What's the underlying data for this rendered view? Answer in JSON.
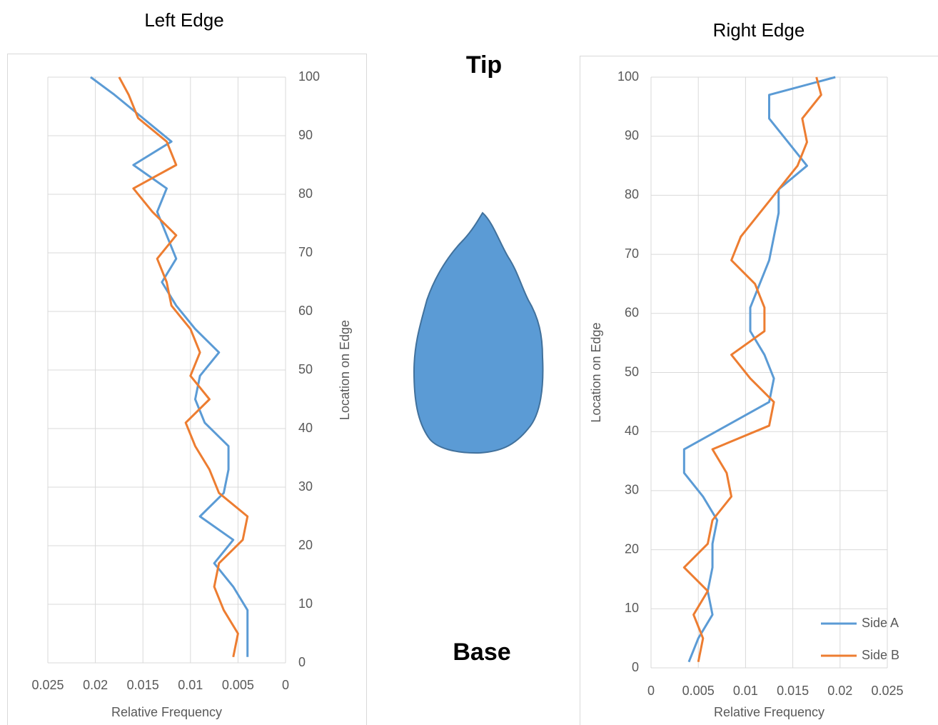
{
  "chart_data": [
    {
      "type": "line",
      "title": "Left Edge",
      "xlabel": "Relative Frequency",
      "ylabel": "Location on Edge",
      "y": [
        1,
        5,
        9,
        13,
        17,
        21,
        25,
        29,
        33,
        37,
        41,
        45,
        49,
        53,
        57,
        61,
        65,
        69,
        73,
        77,
        81,
        85,
        89,
        93,
        97,
        100
      ],
      "series": [
        {
          "color": "#5b9bd5",
          "values": [
            0.004,
            0.004,
            0.004,
            0.0055,
            0.0075,
            0.0055,
            0.009,
            0.0065,
            0.006,
            0.006,
            0.0085,
            0.0095,
            0.009,
            0.007,
            0.0095,
            0.0115,
            0.013,
            0.0115,
            0.0125,
            0.0135,
            0.0125,
            0.016,
            0.012,
            0.015,
            0.018,
            0.0205
          ]
        },
        {
          "color": "#ed7d31",
          "values": [
            0.0055,
            0.005,
            0.0065,
            0.0075,
            0.007,
            0.0045,
            0.004,
            0.007,
            0.008,
            0.0095,
            0.0105,
            0.008,
            0.01,
            0.009,
            0.01,
            0.012,
            0.0125,
            0.0135,
            0.0115,
            0.014,
            0.016,
            0.0115,
            0.0125,
            0.0155,
            0.0165,
            0.0175
          ]
        }
      ],
      "xlim": [
        0.025,
        0
      ],
      "xticks": [
        0.025,
        0.02,
        0.015,
        0.01,
        0.005,
        0
      ],
      "ylim": [
        0,
        100
      ],
      "yticks": [
        0,
        10,
        20,
        30,
        40,
        50,
        60,
        70,
        80,
        90,
        100
      ],
      "yaxis_side": "right",
      "grid": true
    },
    {
      "type": "line",
      "title": "Right Edge",
      "xlabel": "Relative Frequency",
      "ylabel": "Location on Edge",
      "y": [
        1,
        5,
        9,
        13,
        17,
        21,
        25,
        29,
        33,
        37,
        41,
        45,
        49,
        53,
        57,
        61,
        65,
        69,
        73,
        77,
        81,
        85,
        89,
        93,
        97,
        100
      ],
      "series": [
        {
          "name": "Side A",
          "color": "#5b9bd5",
          "values": [
            0.004,
            0.005,
            0.0065,
            0.006,
            0.0065,
            0.0065,
            0.007,
            0.0055,
            0.0035,
            0.0035,
            0.008,
            0.0125,
            0.013,
            0.012,
            0.0105,
            0.0105,
            0.0115,
            0.0125,
            0.013,
            0.0135,
            0.0135,
            0.0165,
            0.0145,
            0.0125,
            0.0125,
            0.0195
          ]
        },
        {
          "name": "Side B",
          "color": "#ed7d31",
          "values": [
            0.005,
            0.0055,
            0.0045,
            0.006,
            0.0035,
            0.006,
            0.0065,
            0.0085,
            0.008,
            0.0065,
            0.0125,
            0.013,
            0.0105,
            0.0085,
            0.012,
            0.012,
            0.011,
            0.0085,
            0.0095,
            0.0115,
            0.0135,
            0.0155,
            0.0165,
            0.016,
            0.018,
            0.0175
          ]
        }
      ],
      "xlim": [
        0,
        0.025
      ],
      "xticks": [
        0,
        0.005,
        0.01,
        0.015,
        0.02,
        0.025
      ],
      "ylim": [
        0,
        100
      ],
      "yticks": [
        0,
        10,
        20,
        30,
        40,
        50,
        60,
        70,
        80,
        90,
        100
      ],
      "yaxis_side": "left",
      "grid": true,
      "legend": "lower right"
    }
  ],
  "labels": {
    "tip": "Tip",
    "base": "Base"
  }
}
